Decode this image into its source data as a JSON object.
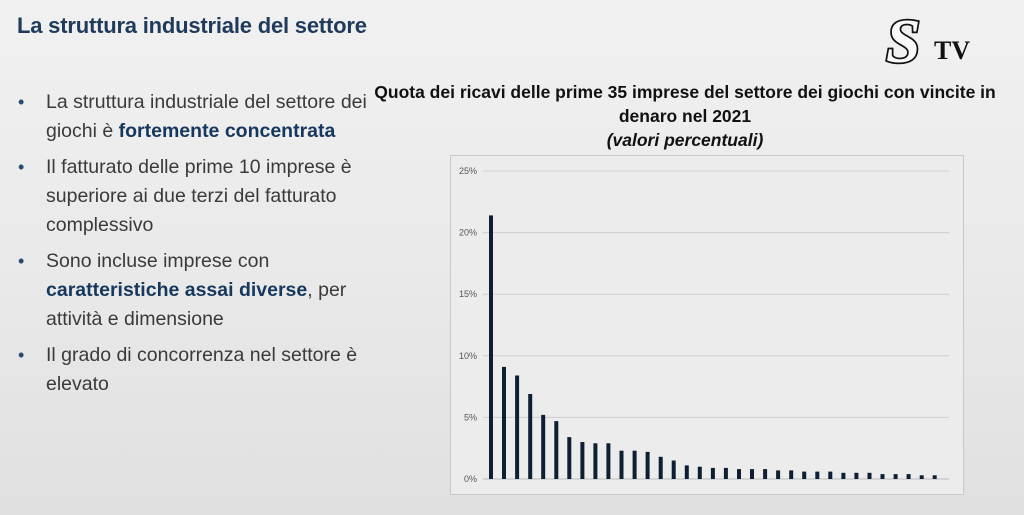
{
  "slide": {
    "title": "La struttura industriale del settore",
    "logo_text": "STV"
  },
  "bullets": [
    [
      {
        "text": "La struttura industriale del settore dei giochi è ",
        "bold": false
      },
      {
        "text": "fortemente concentrata",
        "bold": true
      }
    ],
    [
      {
        "text": "Il fatturato delle prime 10 imprese è superiore ai due terzi del fatturato complessivo",
        "bold": false
      }
    ],
    [
      {
        "text": "Sono incluse imprese con ",
        "bold": false
      },
      {
        "text": "caratteristiche assai diverse",
        "bold": true
      },
      {
        "text": ", per attività e dimensione",
        "bold": false
      }
    ],
    [
      {
        "text": "Il grado di concorrenza nel settore è elevato",
        "bold": false
      }
    ]
  ],
  "chart_data": {
    "type": "bar",
    "title": "Quota dei ricavi delle prime 35 imprese del settore dei giochi con vincite in denaro nel 2021",
    "subtitle": "(valori percentuali)",
    "xlabel": "",
    "ylabel": "",
    "ylim": [
      0,
      25
    ],
    "yticks": [
      0,
      5,
      10,
      15,
      20,
      25
    ],
    "ytick_labels": [
      "0%",
      "5%",
      "10%",
      "15%",
      "20%",
      "25%"
    ],
    "grid": true,
    "bar_color": "#0e1f33",
    "values": [
      21.4,
      9.1,
      8.4,
      6.9,
      5.2,
      4.7,
      3.4,
      3.0,
      2.9,
      2.9,
      2.3,
      2.3,
      2.2,
      1.8,
      1.5,
      1.1,
      1.0,
      0.9,
      0.9,
      0.8,
      0.8,
      0.8,
      0.7,
      0.7,
      0.6,
      0.6,
      0.6,
      0.5,
      0.5,
      0.5,
      0.4,
      0.4,
      0.4,
      0.3,
      0.3
    ]
  }
}
